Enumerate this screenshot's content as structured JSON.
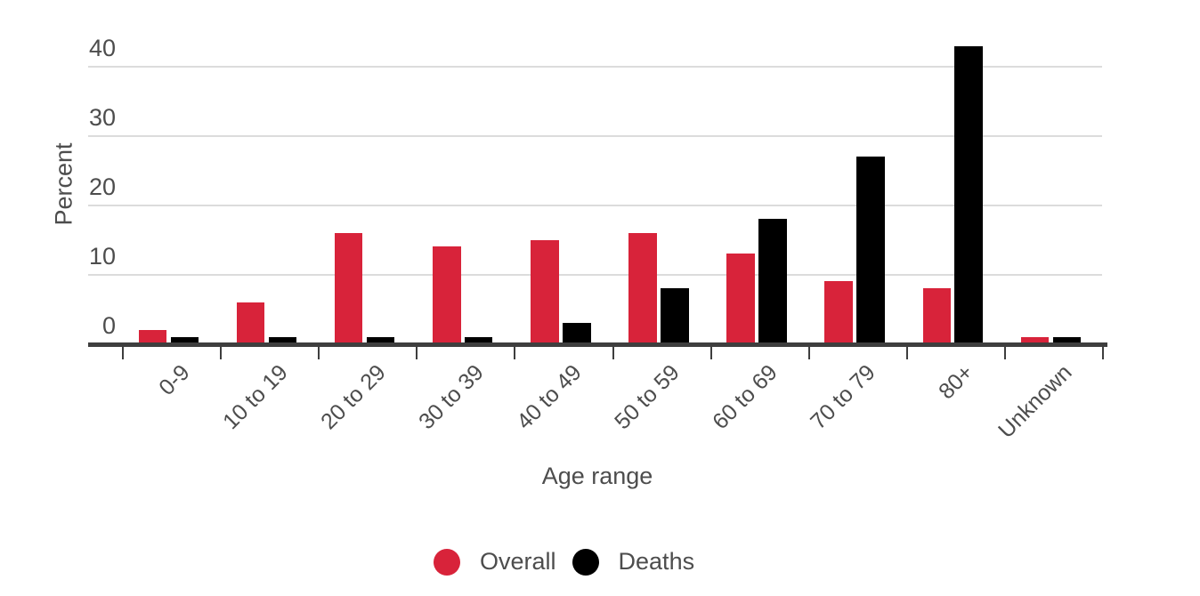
{
  "chart_data": {
    "type": "bar",
    "title": "",
    "xlabel": "Age range",
    "ylabel": "Percent",
    "categories": [
      "0-9",
      "10 to 19",
      "20 to 29",
      "30 to 39",
      "40 to 49",
      "50 to 59",
      "60 to 69",
      "70 to 79",
      "80+",
      "Unknown"
    ],
    "series": [
      {
        "name": "Overall",
        "color": "#d8233a",
        "values": [
          2,
          6,
          16,
          14,
          15,
          16,
          13,
          9,
          8,
          1
        ]
      },
      {
        "name": "Deaths",
        "color": "#000000",
        "values": [
          1,
          1,
          1,
          1,
          3,
          8,
          18,
          27,
          43,
          1
        ]
      }
    ],
    "ylim": [
      0,
      44
    ],
    "yticks": [
      0,
      10,
      20,
      30,
      40
    ],
    "grid": "horizontal",
    "legend_position": "bottom"
  },
  "colors": {
    "background": "#ffffff",
    "axis": "#3e3e3e",
    "gridline": "#dcdcdc",
    "text": "#4d4d4d",
    "overall": "#d8233a",
    "deaths": "#000000"
  }
}
